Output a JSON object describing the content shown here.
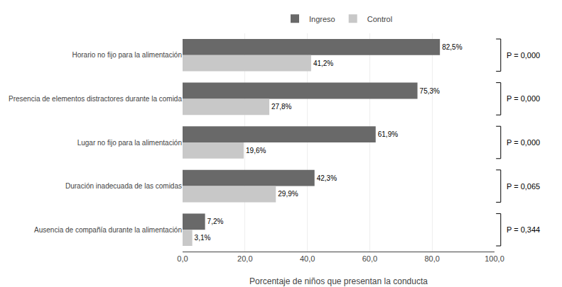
{
  "chart_data": {
    "type": "bar",
    "orientation": "horizontal",
    "categories": [
      "Horario no fijo para la alimentación",
      "Presencia de elementos distractores durante la comida",
      "Lugar no fijo para la alimentación",
      "Duración inadecuada de las comidas",
      "Ausencia de compañía durante la alimentación"
    ],
    "series": [
      {
        "name": "Ingreso",
        "color": "#696969",
        "values": [
          82.5,
          75.3,
          61.9,
          42.3,
          7.2
        ],
        "value_labels": [
          "82,5%",
          "75,3%",
          "61,9%",
          "42,3%",
          "7,2%"
        ]
      },
      {
        "name": "Control",
        "color": "#c8c8c8",
        "values": [
          41.2,
          27.8,
          19.6,
          29.9,
          3.1
        ],
        "value_labels": [
          "41,2%",
          "27,8%",
          "19,6%",
          "29,9%",
          "3,1%"
        ]
      }
    ],
    "annotations": [
      "P = 0,000",
      "P = 0,000",
      "P = 0,000",
      "P = 0,065",
      "P = 0,344"
    ],
    "xlabel": "Porcentaje de niños que presentan la conducta",
    "xlim": [
      0,
      100
    ],
    "xticks": [
      {
        "value": 0,
        "label": "0,0"
      },
      {
        "value": 20,
        "label": "20,0"
      },
      {
        "value": 40,
        "label": "40,0"
      },
      {
        "value": 60,
        "label": "60,0"
      },
      {
        "value": 80,
        "label": "80,0"
      },
      {
        "value": 100,
        "label": "100,0"
      }
    ],
    "grid": true,
    "legend": "top",
    "data_labels": true
  }
}
